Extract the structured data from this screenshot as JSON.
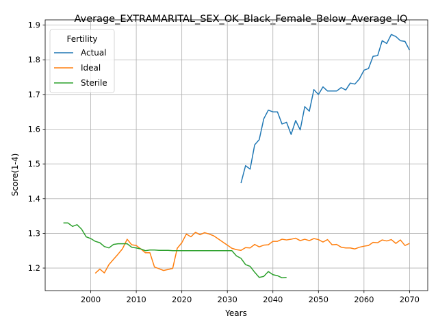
{
  "chart_data": {
    "type": "line",
    "title": "Average_EXTRAMARITAL_SEX_OK_Black_Female_Below_Average_IQ",
    "xlabel": "Years",
    "ylabel": "Score(1-4)",
    "xlim": [
      1990,
      2074
    ],
    "ylim": [
      1.135,
      1.915
    ],
    "xticks": [
      2000,
      2010,
      2020,
      2030,
      2040,
      2050,
      2060,
      2070
    ],
    "xtick_labels": [
      "2000",
      "2010",
      "2020",
      "2030",
      "2040",
      "2050",
      "2060",
      "2070"
    ],
    "yticks": [
      1.2,
      1.3,
      1.4,
      1.5,
      1.6,
      1.7,
      1.8,
      1.9
    ],
    "ytick_labels": [
      "1.2",
      "1.3",
      "1.4",
      "1.5",
      "1.6",
      "1.7",
      "1.8",
      "1.9"
    ],
    "grid": true,
    "legend": {
      "title": "Fertility",
      "position": "top-left"
    },
    "series": [
      {
        "name": "Actual",
        "color": "#1f77b4",
        "x": [
          2033,
          2034,
          2035,
          2036,
          2037,
          2038,
          2039,
          2040,
          2041,
          2042,
          2043,
          2044,
          2045,
          2046,
          2047,
          2048,
          2049,
          2050,
          2051,
          2052,
          2053,
          2054,
          2055,
          2056,
          2057,
          2058,
          2059,
          2060,
          2061,
          2062,
          2063,
          2064,
          2065,
          2066,
          2067,
          2068,
          2069,
          2070
        ],
        "y": [
          1.445,
          1.495,
          1.485,
          1.555,
          1.57,
          1.63,
          1.655,
          1.65,
          1.65,
          1.615,
          1.62,
          1.585,
          1.625,
          1.598,
          1.665,
          1.652,
          1.714,
          1.7,
          1.722,
          1.71,
          1.71,
          1.71,
          1.72,
          1.713,
          1.733,
          1.73,
          1.745,
          1.77,
          1.775,
          1.81,
          1.812,
          1.855,
          1.847,
          1.873,
          1.867,
          1.855,
          1.853,
          1.828
        ]
      },
      {
        "name": "Ideal",
        "color": "#ff7f0e",
        "x": [
          2001,
          2002,
          2003,
          2004,
          2005,
          2006,
          2007,
          2008,
          2009,
          2010,
          2011,
          2012,
          2013,
          2014,
          2015,
          2016,
          2017,
          2018,
          2019,
          2020,
          2021,
          2022,
          2023,
          2024,
          2025,
          2026,
          2027,
          2028,
          2029,
          2030,
          2031,
          2032,
          2033,
          2034,
          2035,
          2036,
          2037,
          2038,
          2039,
          2040,
          2041,
          2042,
          2043,
          2044,
          2045,
          2046,
          2047,
          2048,
          2049,
          2050,
          2051,
          2052,
          2053,
          2054,
          2055,
          2056,
          2057,
          2058,
          2059,
          2060,
          2061,
          2062,
          2063,
          2064,
          2065,
          2066,
          2067,
          2068,
          2069,
          2070
        ],
        "y": [
          1.185,
          1.197,
          1.186,
          1.21,
          1.225,
          1.24,
          1.256,
          1.283,
          1.267,
          1.265,
          1.255,
          1.244,
          1.244,
          1.203,
          1.198,
          1.193,
          1.196,
          1.199,
          1.257,
          1.273,
          1.298,
          1.29,
          1.303,
          1.296,
          1.302,
          1.298,
          1.293,
          1.284,
          1.275,
          1.266,
          1.257,
          1.253,
          1.251,
          1.259,
          1.258,
          1.268,
          1.261,
          1.266,
          1.267,
          1.277,
          1.277,
          1.283,
          1.281,
          1.283,
          1.286,
          1.279,
          1.283,
          1.279,
          1.285,
          1.282,
          1.275,
          1.282,
          1.267,
          1.268,
          1.26,
          1.258,
          1.258,
          1.255,
          1.26,
          1.263,
          1.265,
          1.274,
          1.273,
          1.281,
          1.278,
          1.282,
          1.271,
          1.281,
          1.265,
          1.271
        ]
      },
      {
        "name": "Sterile",
        "color": "#2ca02c",
        "x": [
          1994,
          1995,
          1996,
          1997,
          1998,
          1999,
          2000,
          2001,
          2002,
          2003,
          2004,
          2005,
          2006,
          2007,
          2008,
          2009,
          2010,
          2011,
          2012,
          2013,
          2014,
          2015,
          2016,
          2017,
          2018,
          2019,
          2020,
          2021,
          2022,
          2023,
          2024,
          2025,
          2026,
          2027,
          2028,
          2029,
          2030,
          2031,
          2032,
          2033,
          2034,
          2035,
          2036,
          2037,
          2038,
          2039,
          2040,
          2041,
          2042,
          2043
        ],
        "y": [
          1.33,
          1.33,
          1.32,
          1.325,
          1.312,
          1.29,
          1.285,
          1.277,
          1.273,
          1.262,
          1.258,
          1.268,
          1.27,
          1.27,
          1.27,
          1.26,
          1.258,
          1.255,
          1.25,
          1.252,
          1.252,
          1.251,
          1.251,
          1.251,
          1.25,
          1.25,
          1.25,
          1.25,
          1.25,
          1.25,
          1.25,
          1.25,
          1.25,
          1.25,
          1.25,
          1.25,
          1.25,
          1.25,
          1.235,
          1.228,
          1.21,
          1.205,
          1.188,
          1.173,
          1.176,
          1.19,
          1.181,
          1.178,
          1.172,
          1.173
        ]
      }
    ]
  }
}
